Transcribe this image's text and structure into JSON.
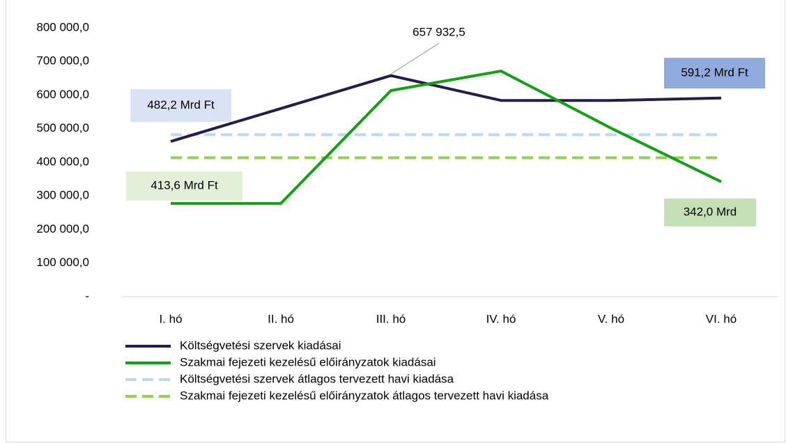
{
  "chart_data": {
    "type": "line",
    "categories": [
      "I. hó",
      "II. hó",
      "III. hó",
      "IV. hó",
      "V. hó",
      "VI. hó"
    ],
    "series": [
      {
        "name": "Költségvetési szervek kiadásai",
        "color": "#261a4f",
        "dash": false,
        "values": [
          462000,
          560000,
          657932.5,
          584000,
          584000,
          591200
        ]
      },
      {
        "name": "Szakmai fejezeti kezelésű előirányzatok kiadásai",
        "color": "#14a014",
        "dash": false,
        "values": [
          277500,
          277500,
          613500,
          671500,
          501500,
          342000
        ]
      },
      {
        "name": "Költségvetési szervek átlagos tervezett havi kiadása",
        "color": "#bdd7ee",
        "dash": true,
        "values": [
          482200,
          482200,
          482200,
          482200,
          482200,
          482200
        ]
      },
      {
        "name": "Szakmai fejezeti kezelésű előirányzatok átlagos tervezett havi kiadása",
        "color": "#92d050",
        "dash": true,
        "values": [
          413600,
          413600,
          413600,
          413600,
          413600,
          413600
        ]
      }
    ],
    "annotations": [
      {
        "text": "657 932,5",
        "color": "none"
      },
      {
        "text": "482,2 Mrd Ft",
        "color": "#dae3f3"
      },
      {
        "text": "591,2 Mrd Ft",
        "color": "#8faadc"
      },
      {
        "text": "413,6 Mrd Ft",
        "color": "#e2f0d9"
      },
      {
        "text": "342,0 Mrd",
        "color": "#c5e0b4"
      }
    ],
    "ylim": [
      0,
      800000
    ],
    "yticks": [
      {
        "value": 0,
        "label": "-"
      },
      {
        "value": 100000,
        "label": "100 000,0"
      },
      {
        "value": 200000,
        "label": "200 000,0"
      },
      {
        "value": 300000,
        "label": "300 000,0"
      },
      {
        "value": 400000,
        "label": "400 000,0"
      },
      {
        "value": 500000,
        "label": "500 000,0"
      },
      {
        "value": 600000,
        "label": "600 000,0"
      },
      {
        "value": 700000,
        "label": "700 000,0"
      },
      {
        "value": 800000,
        "label": "800 000,0"
      }
    ],
    "grid": false
  }
}
